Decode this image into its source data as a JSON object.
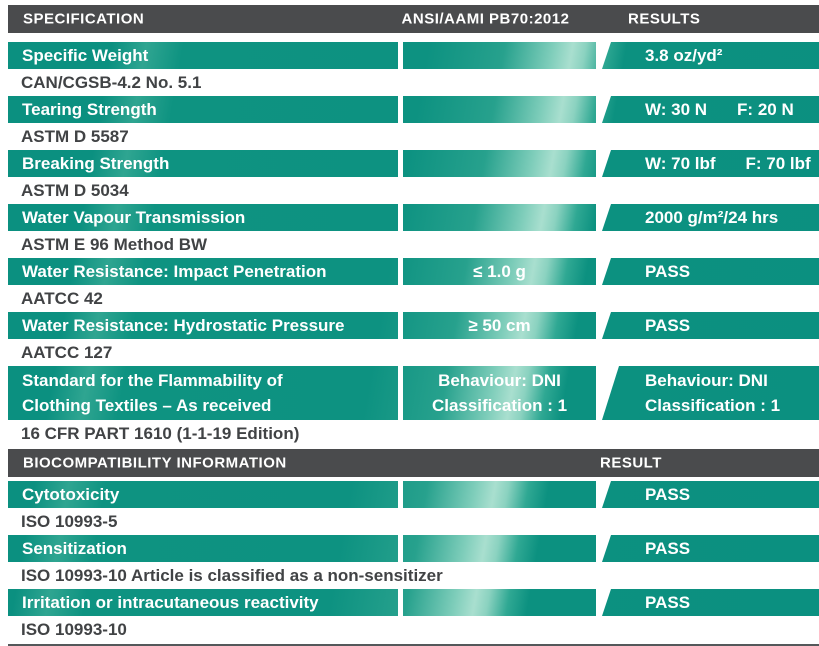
{
  "colors": {
    "teal_base": "#0C9281",
    "teal_highlight": "#A9DFCF",
    "header_bg": "#4A4B4D",
    "sub_text": "#414345",
    "bottom_rule": "#54585A"
  },
  "sections": [
    {
      "header": {
        "col1": "SPECIFICATION",
        "col2": "ANSI/AAMI PB70:2012",
        "col3": "RESULTS"
      },
      "rows": [
        {
          "label": "Specific Weight",
          "mid": "",
          "res": "3.8 oz/yd²",
          "sub": "CAN/CGSB-4.2 No. 5.1"
        },
        {
          "label": "Tearing Strength",
          "mid": "",
          "res": "W: 30 N",
          "res_b": "F: 20 N",
          "sub": "ASTM D 5587"
        },
        {
          "label": "Breaking Strength",
          "mid": "",
          "res": "W: 70 lbf",
          "res_b": "F: 70 lbf",
          "sub": "ASTM D 5034"
        },
        {
          "label": "Water Vapour Transmission",
          "mid": "",
          "res": "2000 g/m²/24 hrs",
          "sub": "ASTM E 96 Method BW"
        },
        {
          "label": "Water Resistance: Impact Penetration",
          "mid": "≤ 1.0 g",
          "res": "PASS",
          "sub": "AATCC 42"
        },
        {
          "label": "Water Resistance: Hydrostatic Pressure",
          "mid": "≥ 50 cm",
          "res": "PASS",
          "sub": "AATCC 127"
        },
        {
          "label": "Standard for the Flammability of",
          "label2": "Clothing Textiles – As received",
          "mid": "Behaviour: DNI",
          "mid2": "Classification : 1",
          "res": "Behaviour: DNI",
          "res2": "Classification : 1",
          "sub": "16 CFR PART 1610 (1-1-19 Edition)"
        }
      ]
    },
    {
      "header": {
        "col1": "BIOCOMPATIBILITY INFORMATION",
        "col2": "",
        "col3": "RESULT"
      },
      "rows": [
        {
          "label": "Cytotoxicity",
          "mid": "",
          "res": "PASS",
          "sub": "ISO 10993-5"
        },
        {
          "label": "Sensitization",
          "mid": "",
          "res": "PASS",
          "sub": "ISO 10993-10 Article is classified as a non-sensitizer"
        },
        {
          "label": "Irritation or intracutaneous reactivity",
          "mid": "",
          "res": "PASS",
          "sub": "ISO 10993-10"
        }
      ]
    }
  ]
}
